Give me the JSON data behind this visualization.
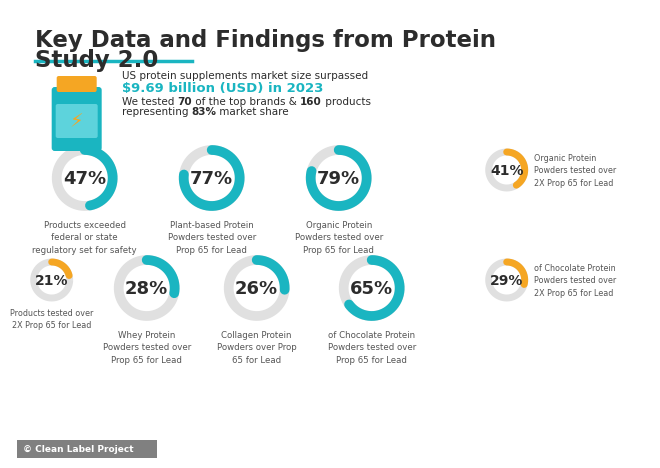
{
  "title_line1": "Key Data and Findings from Protein",
  "title_line2": "Study 2.0",
  "bg_color": "#ffffff",
  "teal": "#1ab5c1",
  "gold": "#f5a623",
  "dark_text": "#2c2c2c",
  "gray_text": "#555555",
  "light_gray": "#e8e8e8",
  "header_text1": "US protein supplements market size surpassed",
  "header_highlight": "$9.69 billion (USD) in 2023",
  "header_text2_pre": "We tested ",
  "header_text2_bold1": "70",
  "header_text2_mid": " of the top brands & ",
  "header_text2_bold2": "160",
  "header_text2_post": " products",
  "header_text3_pre": "representing ",
  "header_text3_bold": "83%",
  "header_text3_post": " market share",
  "row1": [
    {
      "pct": 47,
      "color": "#1ab5c1",
      "label": "Products exceeded\nfederal or state\nregulatory set for safety"
    },
    {
      "pct": 77,
      "color": "#1ab5c1",
      "label": "Plant-based Protein\nPowders tested over\nProp 65 for Lead"
    },
    {
      "pct": 79,
      "color": "#1ab5c1",
      "label": "Organic Protein\nPowders tested over\nProp 65 for Lead"
    },
    {
      "pct": 41,
      "color": "#f5a623",
      "label": "Organic Protein\nPowders tested over\n2X Prop 65 for Lead",
      "small": true
    }
  ],
  "row2": [
    {
      "pct": 21,
      "color": "#f5a623",
      "label": "Products tested over\n2X Prop 65 for Lead",
      "small": true
    },
    {
      "pct": 28,
      "color": "#1ab5c1",
      "label": "Whey Protein\nPowders tested over\nProp 65 for Lead"
    },
    {
      "pct": 26,
      "color": "#1ab5c1",
      "label": "Collagen Protein\nPowders over Prop\n65 for Lead"
    },
    {
      "pct": 65,
      "color": "#1ab5c1",
      "label": "of Chocolate Protein\nPowders tested over\nProp 65 for Lead"
    },
    {
      "pct": 29,
      "color": "#f5a623",
      "label": "of Chocolate Protein\nPowders tested over\n2X Prop 65 for Lead",
      "small": true
    }
  ],
  "footer": "© Clean Label Project"
}
